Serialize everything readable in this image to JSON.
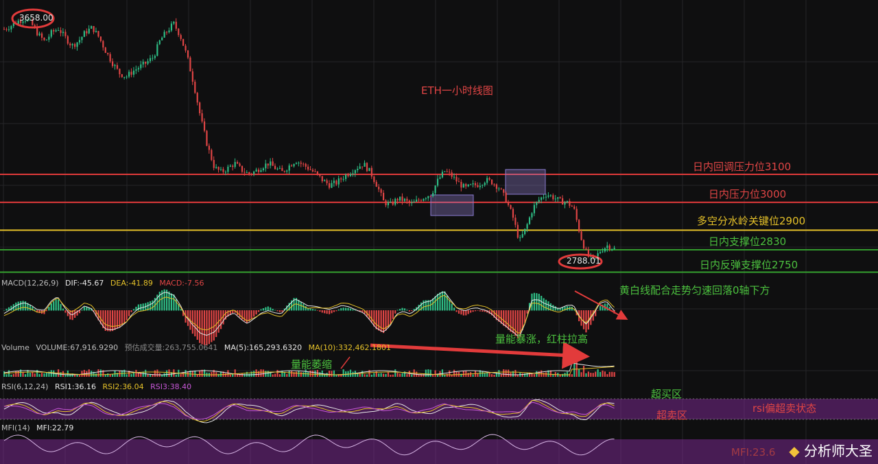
{
  "chart_data": {
    "type": "candlestick",
    "title": "ETH一小时线图",
    "price_range": [
      2700,
      3700
    ],
    "candles": [
      3620,
      3632,
      3648,
      3658,
      3640,
      3602,
      3575,
      3608,
      3622,
      3590,
      3560,
      3578,
      3610,
      3626,
      3590,
      3540,
      3498,
      3462,
      3450,
      3470,
      3485,
      3500,
      3520,
      3580,
      3612,
      3640,
      3595,
      3520,
      3420,
      3300,
      3200,
      3125,
      3108,
      3122,
      3140,
      3116,
      3102,
      3110,
      3128,
      3140,
      3122,
      3108,
      3130,
      3150,
      3136,
      3120,
      3102,
      3078,
      3062,
      3070,
      3090,
      3108,
      3124,
      3138,
      3108,
      3060,
      3000,
      2992,
      3012,
      3008,
      2992,
      3006,
      3020,
      3030,
      3080,
      3112,
      3095,
      3070,
      3050,
      3060,
      3064,
      3080,
      3072,
      3052,
      3010,
      2950,
      2860,
      2910,
      2980,
      3012,
      3030,
      3018,
      3004,
      3000,
      2980,
      2880,
      2808,
      2795,
      2828,
      2846,
      2834
    ],
    "support_resistance": [
      {
        "label": "日内回调压力位3100",
        "value": 3100,
        "color": "#e03a3a"
      },
      {
        "label": "日内压力位3000",
        "value": 3000,
        "color": "#e03a3a"
      },
      {
        "label": "多空分水岭关键位2900",
        "value": 2900,
        "color": "#e6c229"
      },
      {
        "label": "日内支撑位2830",
        "value": 2830,
        "color": "#35a12f"
      },
      {
        "label": "日内反弹支撑位2750",
        "value": 2750,
        "color": "#35a12f"
      }
    ],
    "high_marker": "3658.00",
    "low_marker": "2788.01",
    "consolidation_boxes": 2
  },
  "annotations": {
    "title": "ETH一小时线图",
    "macd_note": "黄白线配合走势匀速回落0轴下方",
    "volume_surge": "量能暴涨，红柱拉高",
    "volume_shrink": "量能萎缩",
    "overbought": "超买区",
    "oversold": "超卖区",
    "rsi_note": "rsi偏超卖状态"
  },
  "indicators": {
    "macd": {
      "name": "MACD(12,26,9)",
      "dif": "DIF:-45.67",
      "dea": "DEA:-41.89",
      "macd": "MACD:-7.56"
    },
    "volume": {
      "name": "Volume",
      "volume": "VOLUME:67,916.9290",
      "est": "预估成交量:263,755.0641",
      "ma5": "MA(5):165,293.6320",
      "ma10": "MA(10):332,462.1801"
    },
    "rsi": {
      "name": "RSI(6,12,24)",
      "rsi1": "RSI1:36.16",
      "rsi2": "RSI2:36.04",
      "rsi3": "RSI3:38.40"
    },
    "mfi": {
      "name": "MFI(14)",
      "mfi": "MFI:22.79"
    }
  },
  "watermark": {
    "text": "分析师大圣",
    "dim_text": "MFI:23.6"
  },
  "colors": {
    "up": "#2ebd85",
    "down": "#e04545",
    "bg": "#0f0f10",
    "grid": "#262628"
  }
}
